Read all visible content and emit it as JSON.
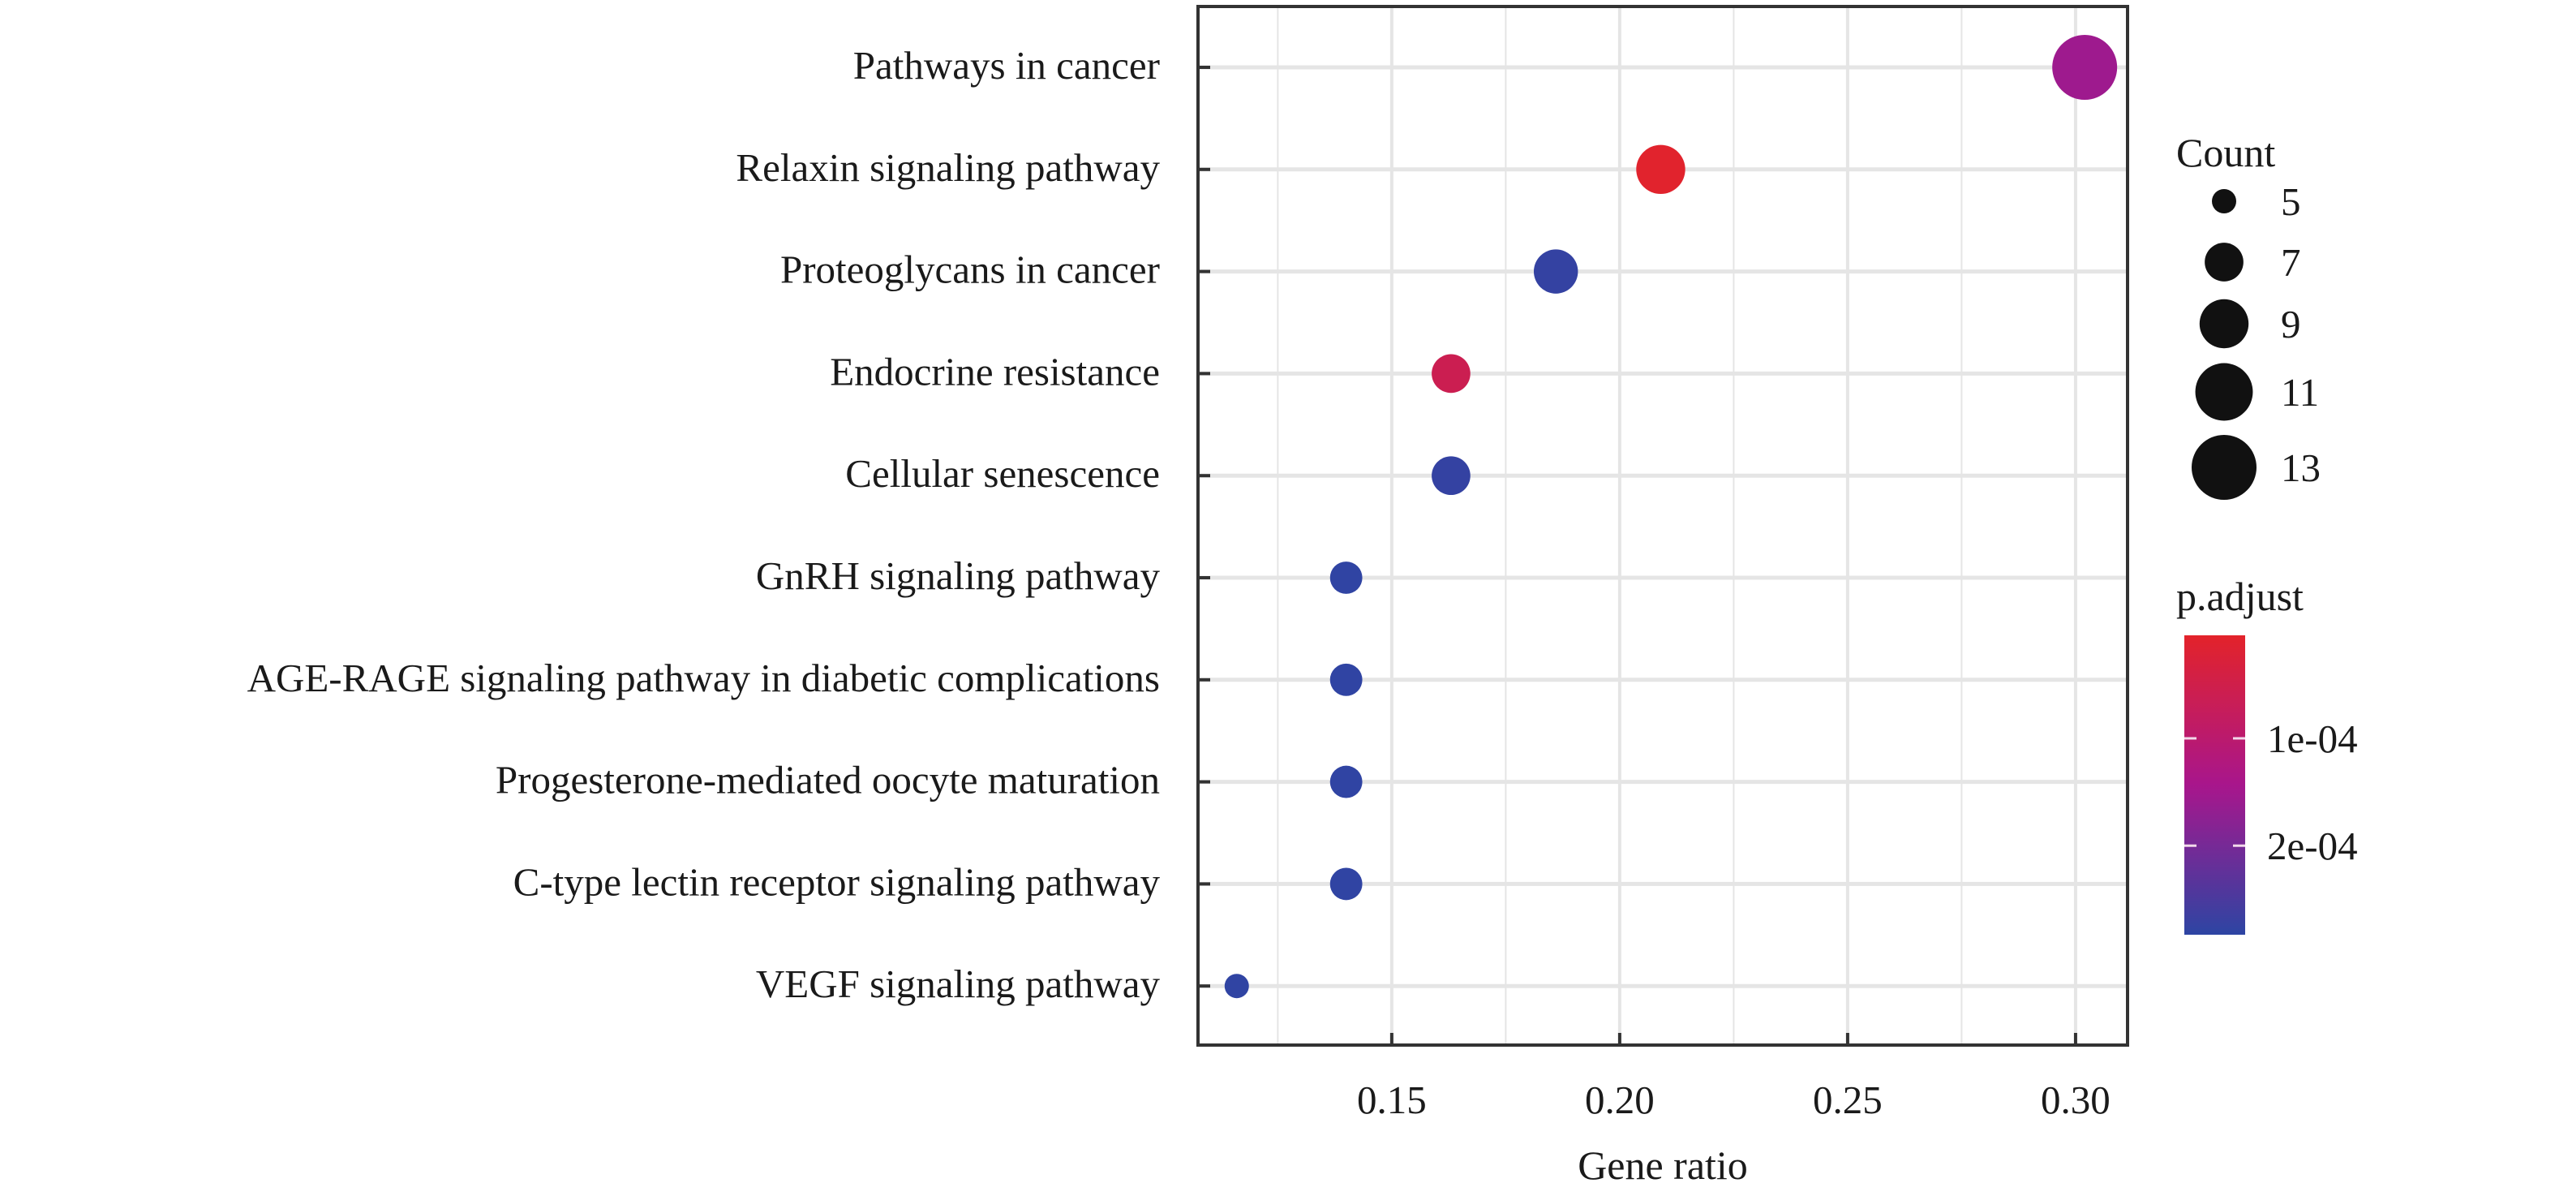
{
  "chart_data": {
    "type": "scatter",
    "subtype": "dot-plot",
    "title": "",
    "xlabel": "Gene ratio",
    "ylabel": "",
    "xlim": [
      0.1075,
      0.3114
    ],
    "xticks": [
      0.15,
      0.2,
      0.25,
      0.3
    ],
    "xtick_labels": [
      "0.15",
      "0.20",
      "0.25",
      "0.30"
    ],
    "grid": true,
    "categories": [
      "Pathways in cancer",
      "Relaxin signaling pathway",
      "Proteoglycans in cancer",
      "Endocrine resistance",
      "Cellular senescence",
      "GnRH signaling pathway",
      "AGE-RAGE signaling pathway in diabetic complications",
      "Progesterone-mediated oocyte maturation",
      "C-type lectin receptor signaling pathway",
      "VEGF signaling pathway"
    ],
    "points": [
      {
        "term": "Pathways in cancer",
        "gene_ratio": 0.302,
        "count": 13,
        "p_adjust": 0.000155
      },
      {
        "term": "Relaxin signaling pathway",
        "gene_ratio": 0.209,
        "count": 9,
        "p_adjust": 8e-06
      },
      {
        "term": "Proteoglycans in cancer",
        "gene_ratio": 0.186,
        "count": 8,
        "p_adjust": 0.000275
      },
      {
        "term": "Endocrine resistance",
        "gene_ratio": 0.163,
        "count": 7,
        "p_adjust": 6e-05
      },
      {
        "term": "Cellular senescence",
        "gene_ratio": 0.163,
        "count": 7,
        "p_adjust": 0.000275
      },
      {
        "term": "GnRH signaling pathway",
        "gene_ratio": 0.14,
        "count": 6,
        "p_adjust": 0.00028
      },
      {
        "term": "AGE-RAGE signaling pathway in diabetic complications",
        "gene_ratio": 0.14,
        "count": 6,
        "p_adjust": 0.00028
      },
      {
        "term": "Progesterone-mediated oocyte maturation",
        "gene_ratio": 0.14,
        "count": 6,
        "p_adjust": 0.00028
      },
      {
        "term": "C-type lectin receptor signaling pathway",
        "gene_ratio": 0.14,
        "count": 6,
        "p_adjust": 0.00028
      },
      {
        "term": "VEGF signaling pathway",
        "gene_ratio": 0.116,
        "count": 5,
        "p_adjust": 0.00028
      }
    ],
    "size_legend": {
      "title": "Count",
      "values": [
        5,
        7,
        9,
        11,
        13
      ],
      "labels": [
        "5",
        "7",
        "9",
        "11",
        "13"
      ],
      "placement": "right"
    },
    "color_legend": {
      "title": "p.adjust",
      "range": [
        4e-06,
        0.000283
      ],
      "ticks": [
        0.0001,
        0.0002
      ],
      "tick_labels": [
        "1e-04",
        "2e-04"
      ],
      "low_color": "#e3232a",
      "mid_color": "#a8168c",
      "high_color": "#2d45a3",
      "placement": "right",
      "direction": "low values at top"
    }
  },
  "colors": {
    "axis": "#333333",
    "grid": "#e5e5e5",
    "background": "#ffffff",
    "text": "#1a1a1a"
  }
}
